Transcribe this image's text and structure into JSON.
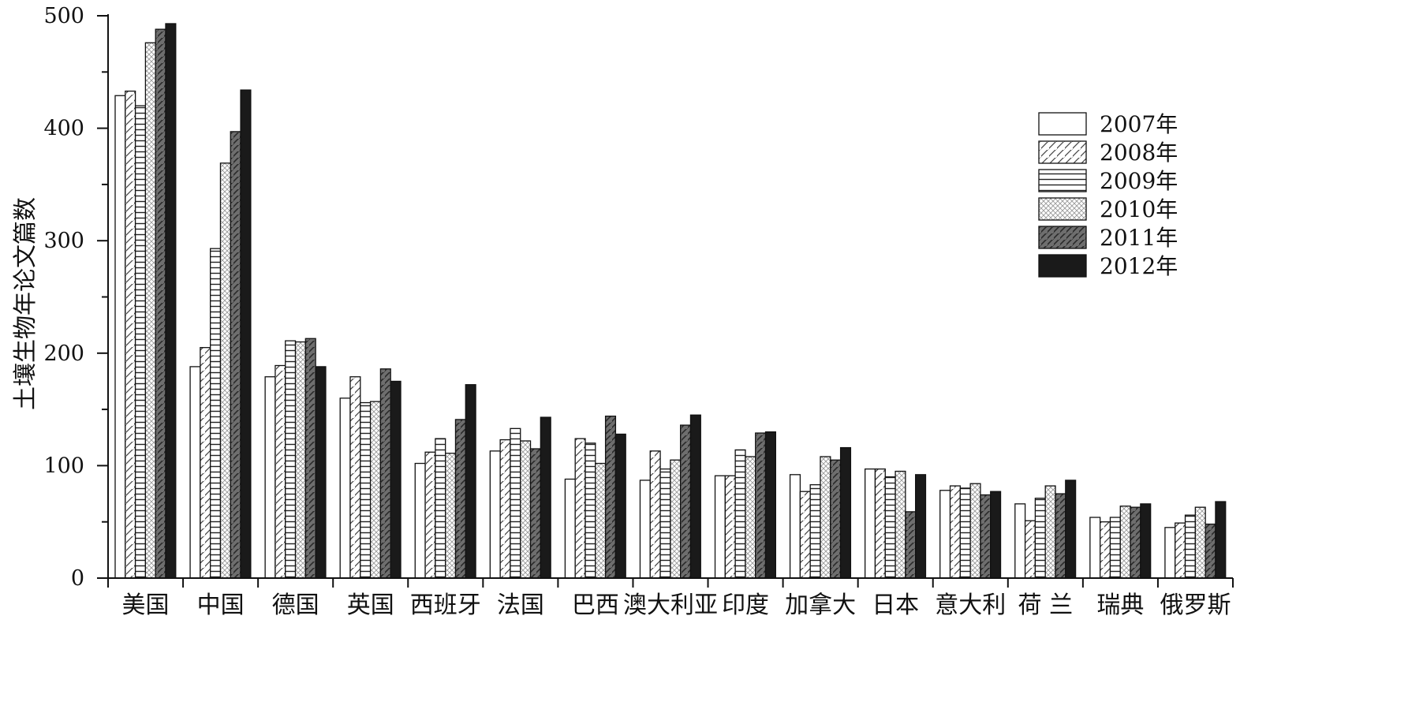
{
  "chart_data": {
    "type": "bar",
    "title": "",
    "xlabel": "",
    "ylabel": "土壤生物年论文篇数",
    "ylim": [
      0,
      500
    ],
    "yticks": [
      0,
      100,
      200,
      300,
      400,
      500
    ],
    "legend_position": "top-right",
    "categories": [
      "美国",
      "中国",
      "德国",
      "英国",
      "西班牙",
      "法国",
      "巴西",
      "澳大利亚",
      "印度",
      "加拿大",
      "日本",
      "意大利",
      "荷 兰",
      "瑞典",
      "俄罗斯"
    ],
    "series": [
      {
        "name": "2007年",
        "pattern": "white",
        "values": [
          429,
          188,
          179,
          160,
          102,
          113,
          88,
          87,
          91,
          92,
          97,
          78,
          66,
          54,
          45
        ]
      },
      {
        "name": "2008年",
        "pattern": "diagonal-hatch",
        "values": [
          433,
          205,
          189,
          179,
          112,
          123,
          124,
          113,
          91,
          77,
          97,
          82,
          51,
          50,
          49
        ]
      },
      {
        "name": "2009年",
        "pattern": "horizontal-lines",
        "values": [
          420,
          293,
          211,
          156,
          124,
          133,
          120,
          97,
          114,
          83,
          90,
          80,
          71,
          54,
          56
        ]
      },
      {
        "name": "2010年",
        "pattern": "crosshatch-light",
        "values": [
          476,
          369,
          210,
          157,
          111,
          122,
          102,
          105,
          108,
          108,
          95,
          84,
          82,
          64,
          63
        ]
      },
      {
        "name": "2011年",
        "pattern": "dark-diagonal",
        "values": [
          488,
          397,
          213,
          186,
          141,
          115,
          144,
          136,
          129,
          105,
          59,
          74,
          75,
          63,
          48
        ]
      },
      {
        "name": "2012年",
        "pattern": "solid-black",
        "values": [
          493,
          434,
          188,
          175,
          172,
          143,
          128,
          145,
          130,
          116,
          92,
          77,
          87,
          66,
          68
        ]
      }
    ]
  }
}
